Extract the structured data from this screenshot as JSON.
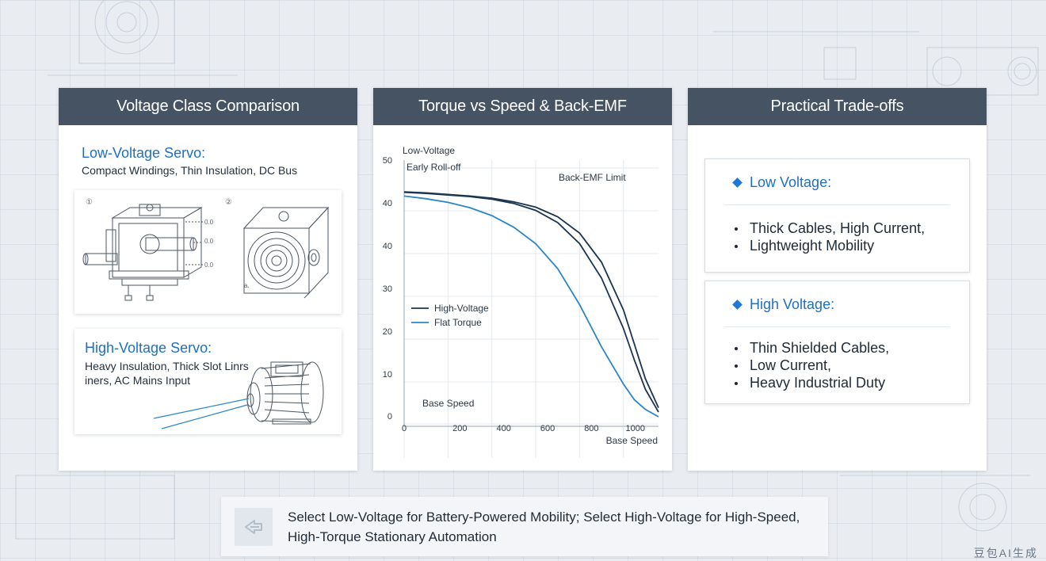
{
  "panels": {
    "comparison": {
      "title": "Voltage Class Comparison",
      "low_voltage": {
        "title": "Low-Voltage Servo:",
        "subtitle": "Compact Windings, Thin Insulation, DC Bus",
        "figure_markers": [
          "①",
          "②"
        ],
        "callouts": [
          "0.0",
          "0.0",
          "0.0"
        ],
        "corner_label": "a."
      },
      "high_voltage": {
        "title": "High-Voltage Servo:",
        "subtitle": "Heavy Insulation, Thick Slot Linrs iners, AC Mains Input"
      }
    },
    "chart": {
      "title": "Torque vs Speed & Back-EMF"
    },
    "tradeoffs": {
      "title": "Practical Trade-offs",
      "low_voltage": {
        "heading": "Low Voltage:",
        "items": [
          "Thick Cables, High Current,",
          "Lightweight Mobility"
        ]
      },
      "high_voltage": {
        "heading": "High Voltage:",
        "items": [
          "Thin Shielded Cables,",
          "Low Current,",
          "Heavy Industrial Duty"
        ]
      }
    }
  },
  "footer": {
    "text": "Select Low-Voltage for Battery-Powered Mobility; Select High-Voltage for High-Speed, High-Torque Stationary Automation"
  },
  "watermark": "豆包AI生成",
  "colors": {
    "header": "#465362",
    "accent_blue": "#1f6fc2",
    "curve_dark": "#1b3550",
    "curve_blue": "#2a86c9"
  },
  "chart_data": {
    "type": "line",
    "title": "",
    "xlabel": "Base Speed",
    "ylabel": "",
    "xlim": [
      0,
      1160
    ],
    "ylim": [
      0,
      50
    ],
    "x_ticks": [
      0,
      200,
      400,
      600,
      800,
      1000
    ],
    "y_tick_labels": [
      "50",
      "40",
      "40",
      "30",
      "20",
      "10",
      "0"
    ],
    "annotations": [
      "Low-Voltage",
      "Early Roll-off",
      "Back-EMF Limit",
      "Base Speed"
    ],
    "legend": [
      "High-Voltage",
      "Flat Torque"
    ],
    "grid": true,
    "series": [
      {
        "name": "High-Voltage",
        "color": "#1b3550",
        "x": [
          0,
          100,
          200,
          300,
          400,
          500,
          600,
          700,
          800,
          900,
          1000,
          1050,
          1100,
          1160
        ],
        "y": [
          44.2,
          44.0,
          43.7,
          43.4,
          42.9,
          42.1,
          40.8,
          38.5,
          34.5,
          28.0,
          18.5,
          12.5,
          7.0,
          2.7
        ]
      },
      {
        "name": "",
        "color": "#1b3550",
        "x": [
          0,
          100,
          200,
          300,
          400,
          500,
          600,
          700,
          800,
          900,
          1000,
          1050,
          1100,
          1160
        ],
        "y": [
          44.3,
          44.1,
          43.8,
          43.5,
          43.1,
          42.4,
          41.4,
          39.6,
          36.5,
          31.0,
          22.0,
          15.5,
          9.0,
          3.5
        ]
      },
      {
        "name": "Flat Torque",
        "color": "#2a86c9",
        "x": [
          0,
          100,
          200,
          300,
          400,
          500,
          600,
          700,
          800,
          900,
          1000,
          1050,
          1100,
          1160
        ],
        "y": [
          43.5,
          43.0,
          42.3,
          41.3,
          39.8,
          37.6,
          34.5,
          29.8,
          23.0,
          15.0,
          8.0,
          5.0,
          3.2,
          1.8
        ]
      }
    ]
  }
}
